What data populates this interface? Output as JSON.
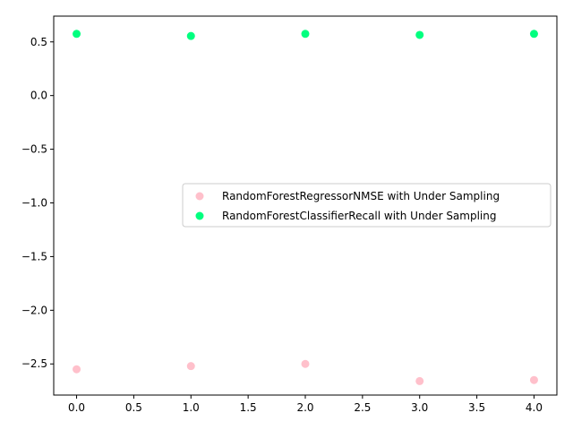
{
  "chart_data": {
    "type": "scatter",
    "x": [
      0,
      1,
      2,
      3,
      4
    ],
    "series": [
      {
        "name": "RandomForestRegressorNMSE with Under Sampling",
        "color": "#ffc0cb",
        "values": [
          -2.55,
          -2.52,
          -2.5,
          -2.66,
          -2.65
        ]
      },
      {
        "name": "RandomForestClassifierRecall with Under Sampling",
        "color": "#00ff7f",
        "values": [
          0.575,
          0.555,
          0.575,
          0.565,
          0.575
        ]
      }
    ],
    "xlim": [
      -0.2,
      4.2
    ],
    "ylim": [
      -2.79,
      0.74
    ],
    "xticks": [
      0,
      0.5,
      1,
      1.5,
      2,
      2.5,
      3,
      3.5,
      4
    ],
    "xtick_labels": [
      "0.0",
      "0.5",
      "1.0",
      "1.5",
      "2.0",
      "2.5",
      "3.0",
      "3.5",
      "4.0"
    ],
    "yticks": [
      0.5,
      0,
      -0.5,
      -1,
      -1.5,
      -2,
      -2.5
    ],
    "ytick_labels": [
      "0.5",
      "0.0",
      "−0.5",
      "−1.0",
      "−1.5",
      "−2.0",
      "−2.5"
    ],
    "grid": false,
    "legend": "center-right",
    "title": "",
    "xlabel": "",
    "ylabel": ""
  }
}
